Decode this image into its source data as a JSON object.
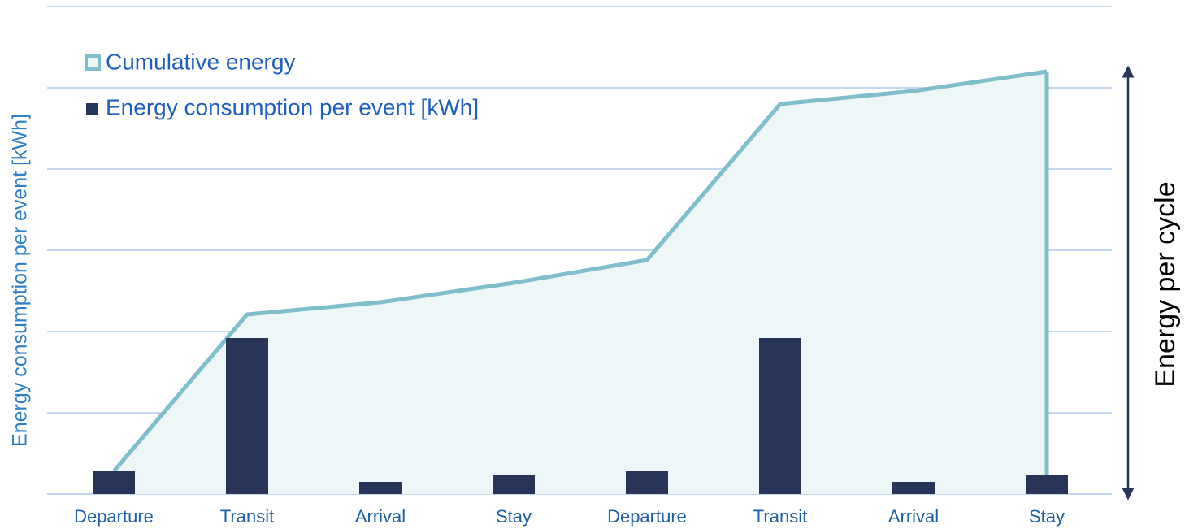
{
  "chart_data": {
    "type": "bar",
    "y_label": "Energy consumption per event [kWh]",
    "y2_label": "Energy per cycle",
    "categories": [
      "Departure",
      "Transit",
      "Arrival",
      "Stay",
      "Departure",
      "Transit",
      "Arrival",
      "Stay"
    ],
    "series": [
      {
        "name": "Cumulative energy",
        "type": "area",
        "color": "#7fbfcc",
        "fill": "#eef7f8",
        "values": [
          0.28,
          2.21,
          2.36,
          2.6,
          2.88,
          4.8,
          4.96,
          5.2
        ]
      },
      {
        "name": "Energy consumption per event [kWh]",
        "type": "bar",
        "color": "#283558",
        "values": [
          0.28,
          1.92,
          0.15,
          0.23,
          0.28,
          1.92,
          0.15,
          0.23
        ]
      }
    ],
    "ylim": [
      0,
      6
    ],
    "yticks": [
      0,
      1,
      2,
      3,
      4,
      5,
      6
    ],
    "grid": true,
    "legend": "upper left"
  }
}
